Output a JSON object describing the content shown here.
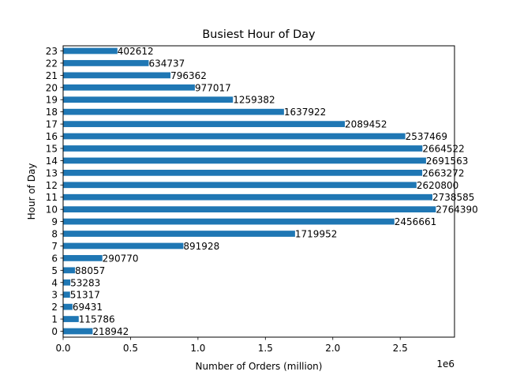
{
  "chart_data": {
    "type": "bar",
    "orientation": "horizontal",
    "title": "Busiest Hour of Day",
    "xlabel": "Number of Orders (million)",
    "ylabel": "Hour of Day",
    "x_offset_label": "1e6",
    "xlim": [
      0,
      2902609
    ],
    "x_ticks": [
      0,
      500000,
      1000000,
      1500000,
      2000000,
      2500000
    ],
    "x_tick_labels": [
      "0.0",
      "0.5",
      "1.0",
      "1.5",
      "2.0",
      "2.5"
    ],
    "categories": [
      "0",
      "1",
      "2",
      "3",
      "4",
      "5",
      "6",
      "7",
      "8",
      "9",
      "10",
      "11",
      "12",
      "13",
      "14",
      "15",
      "16",
      "17",
      "18",
      "19",
      "20",
      "21",
      "22",
      "23"
    ],
    "values": [
      218942,
      115786,
      69431,
      51317,
      53283,
      88057,
      290770,
      891928,
      1719952,
      2456661,
      2764390,
      2738585,
      2620800,
      2663272,
      2691563,
      2664522,
      2537469,
      2089452,
      1637922,
      1259382,
      977017,
      796362,
      634737,
      402612
    ],
    "bar_color": "#1f77b4",
    "data_labels": true,
    "grid": false,
    "legend": "none"
  }
}
